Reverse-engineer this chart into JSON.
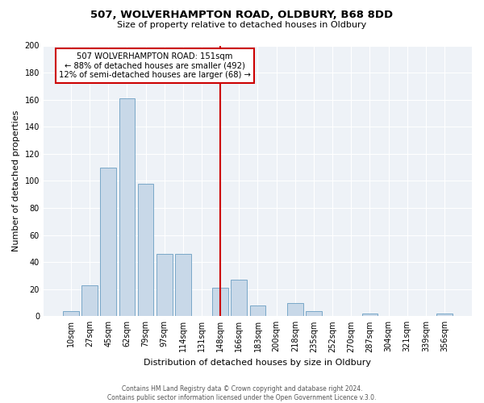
{
  "title": "507, WOLVERHAMPTON ROAD, OLDBURY, B68 8DD",
  "subtitle": "Size of property relative to detached houses in Oldbury",
  "xlabel": "Distribution of detached houses by size in Oldbury",
  "ylabel": "Number of detached properties",
  "bar_labels": [
    "10sqm",
    "27sqm",
    "45sqm",
    "62sqm",
    "79sqm",
    "97sqm",
    "114sqm",
    "131sqm",
    "148sqm",
    "166sqm",
    "183sqm",
    "200sqm",
    "218sqm",
    "235sqm",
    "252sqm",
    "270sqm",
    "287sqm",
    "304sqm",
    "321sqm",
    "339sqm",
    "356sqm"
  ],
  "bar_heights": [
    4,
    23,
    110,
    161,
    98,
    46,
    46,
    0,
    21,
    27,
    8,
    0,
    10,
    4,
    0,
    0,
    2,
    0,
    0,
    0,
    2
  ],
  "bar_color": "#c8d8e8",
  "bar_edge_color": "#7aa8c8",
  "vline_index": 8,
  "vline_color": "#cc0000",
  "annotation_text": "507 WOLVERHAMPTON ROAD: 151sqm\n← 88% of detached houses are smaller (492)\n12% of semi-detached houses are larger (68) →",
  "annotation_box_color": "#ffffff",
  "annotation_box_edge": "#cc0000",
  "ylim": [
    0,
    200
  ],
  "yticks": [
    0,
    20,
    40,
    60,
    80,
    100,
    120,
    140,
    160,
    180,
    200
  ],
  "footer_line1": "Contains HM Land Registry data © Crown copyright and database right 2024.",
  "footer_line2": "Contains public sector information licensed under the Open Government Licence v.3.0.",
  "bg_color": "#ffffff",
  "plot_bg_color": "#eef2f7",
  "title_fontsize": 9.5,
  "subtitle_fontsize": 8,
  "axis_fontsize": 8,
  "tick_fontsize": 7,
  "footer_fontsize": 5.5
}
